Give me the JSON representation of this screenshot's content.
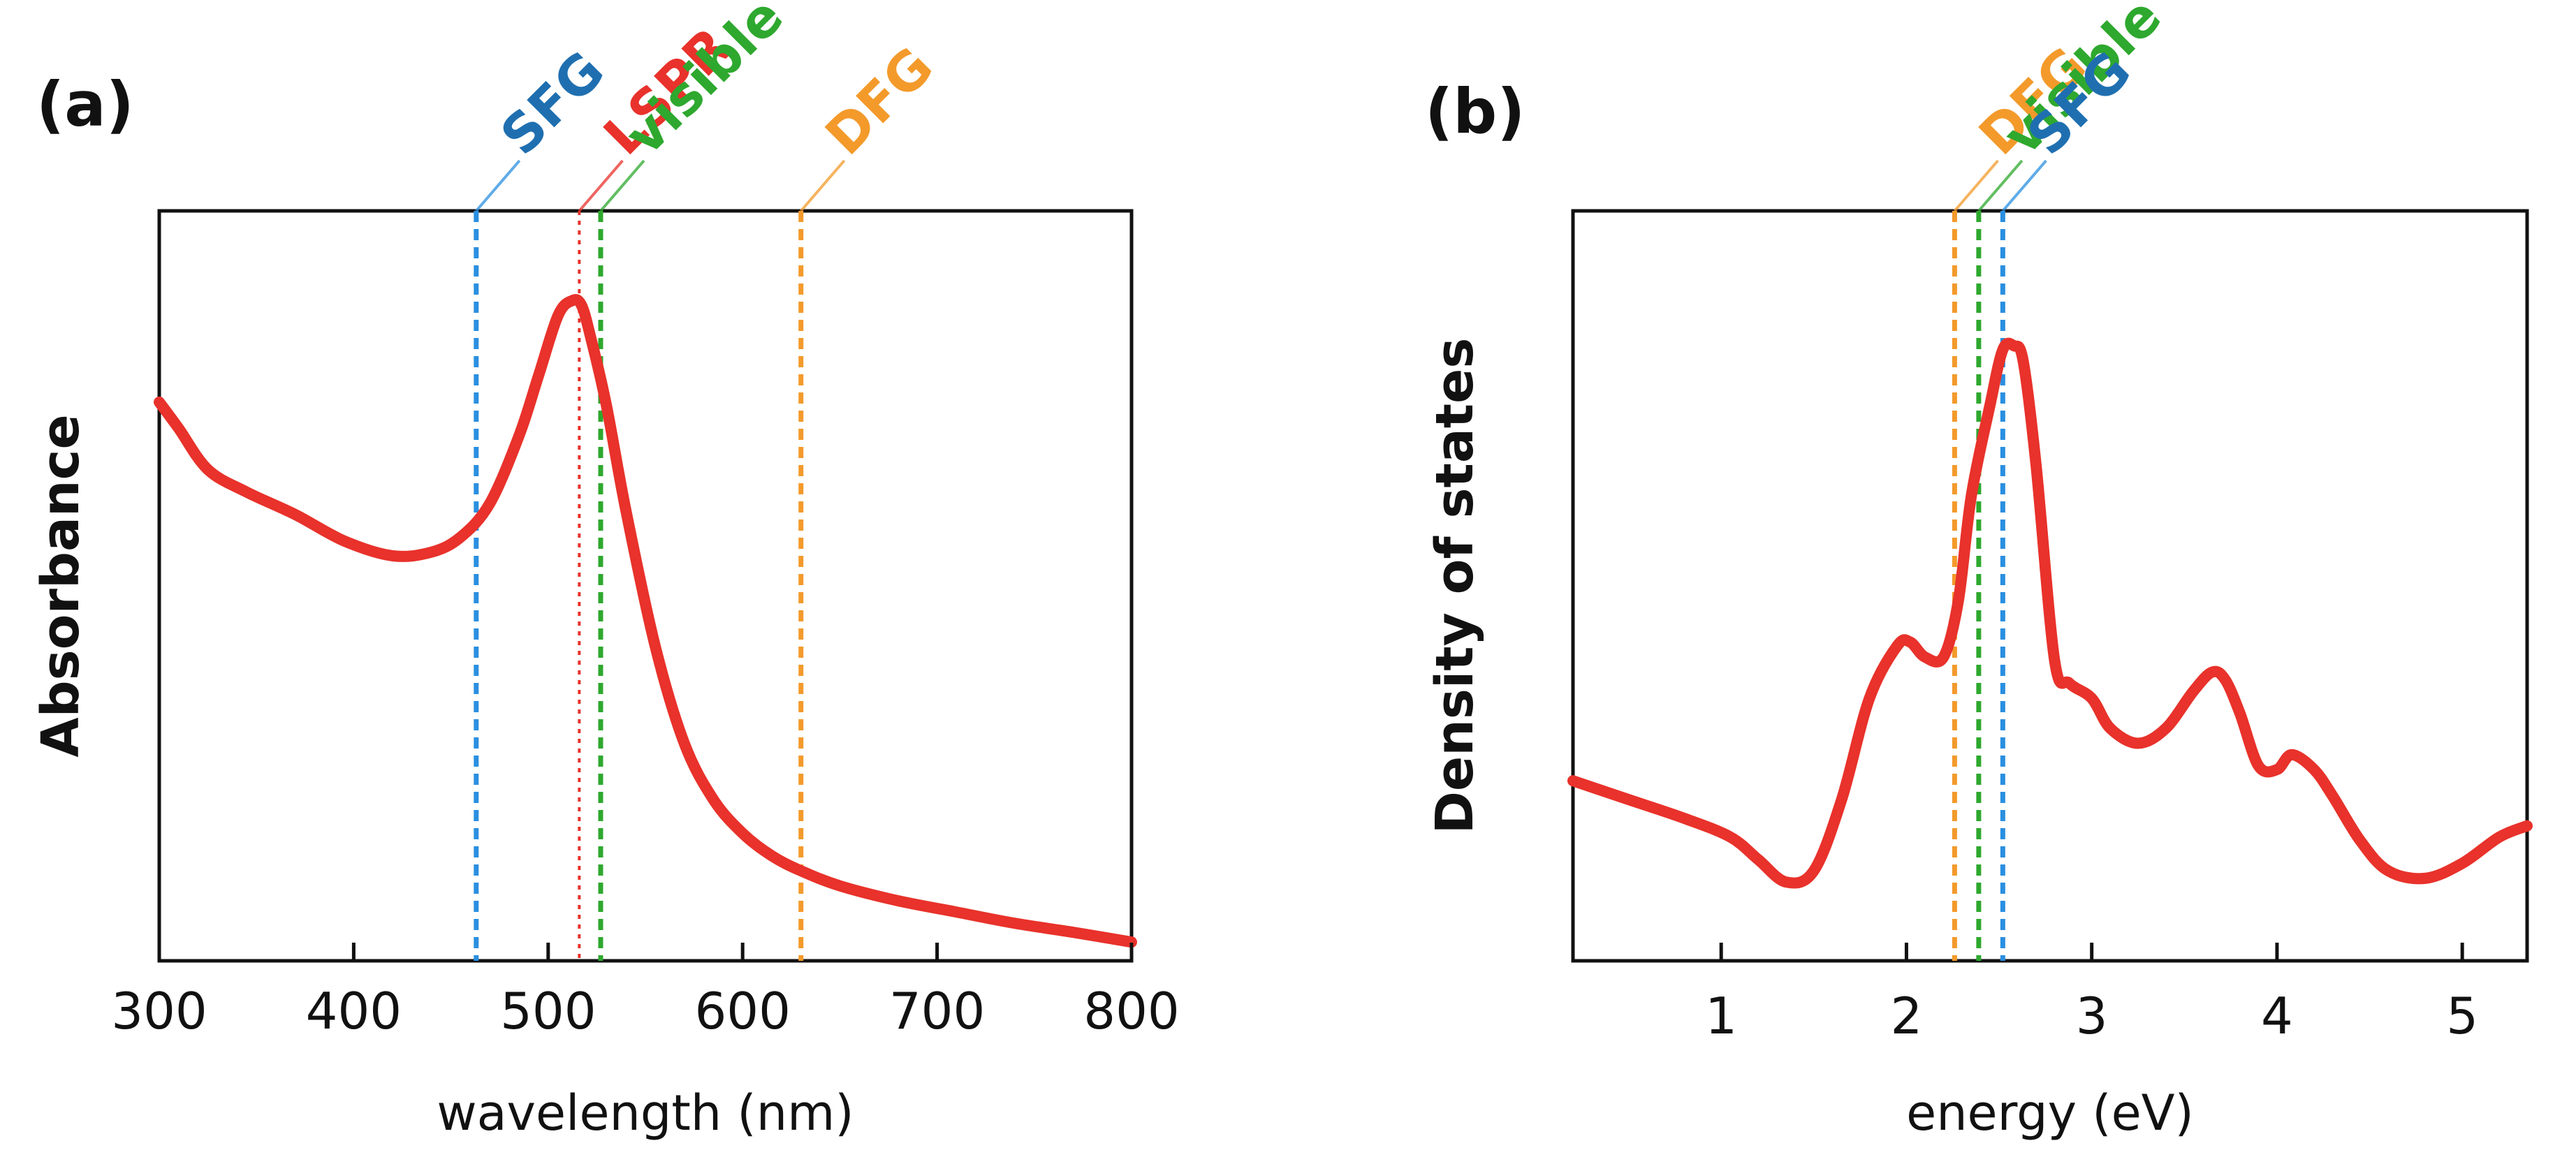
{
  "chart_data": [
    {
      "type": "line",
      "panel_label": "(a)",
      "xlabel": "wavelength (nm)",
      "ylabel": "Absorbance",
      "xlim": [
        300,
        800
      ],
      "ylim": [
        0,
        1
      ],
      "xticks": [
        300,
        400,
        500,
        600,
        700,
        800
      ],
      "y_tick_labels": false,
      "grid": false,
      "series": [
        {
          "color": "#e8322b",
          "x": [
            300,
            310,
            325,
            345,
            370,
            395,
            420,
            440,
            455,
            470,
            485,
            495,
            505,
            512,
            517,
            522,
            530,
            540,
            555,
            570,
            585,
            600,
            615,
            630,
            650,
            680,
            710,
            740,
            770,
            800
          ],
          "y": [
            0.745,
            0.71,
            0.655,
            0.625,
            0.595,
            0.56,
            0.54,
            0.545,
            0.565,
            0.61,
            0.7,
            0.78,
            0.86,
            0.88,
            0.875,
            0.83,
            0.74,
            0.6,
            0.42,
            0.29,
            0.215,
            0.17,
            0.14,
            0.12,
            0.1,
            0.08,
            0.065,
            0.05,
            0.038,
            0.025
          ]
        }
      ],
      "markers": [
        {
          "label": "SFG",
          "x": 463,
          "color": "#2a8fe0",
          "label_color": "#1f6fb0",
          "style": "dashed"
        },
        {
          "label": "LSPR",
          "x": 516,
          "color": "#e8322b",
          "label_color": "#e8322b",
          "style": "dotted"
        },
        {
          "label": "visible",
          "x": 527,
          "color": "#2ea82e",
          "label_color": "#2ea82e",
          "style": "dashed"
        },
        {
          "label": "DFG",
          "x": 630,
          "color": "#f39a2b",
          "label_color": "#f39a2b",
          "style": "dashed"
        }
      ]
    },
    {
      "type": "line",
      "panel_label": "(b)",
      "xlabel": "energy (eV)",
      "ylabel": "Density of states",
      "xlim": [
        0.2,
        5.35
      ],
      "ylim": [
        0,
        1
      ],
      "xticks": [
        1,
        2,
        3,
        4,
        5
      ],
      "y_tick_labels": false,
      "grid": false,
      "series": [
        {
          "color": "#e8322b",
          "x": [
            0.2,
            0.5,
            0.8,
            1.05,
            1.2,
            1.35,
            1.5,
            1.65,
            1.8,
            1.95,
            2.02,
            2.1,
            2.2,
            2.28,
            2.35,
            2.45,
            2.52,
            2.58,
            2.63,
            2.7,
            2.8,
            2.88,
            3.0,
            3.1,
            3.25,
            3.4,
            3.55,
            3.65,
            3.72,
            3.8,
            3.9,
            4.0,
            4.08,
            4.2,
            4.3,
            4.45,
            4.6,
            4.8,
            5.0,
            5.2,
            5.35
          ],
          "y": [
            0.24,
            0.215,
            0.19,
            0.165,
            0.135,
            0.105,
            0.12,
            0.215,
            0.35,
            0.42,
            0.425,
            0.405,
            0.405,
            0.48,
            0.62,
            0.74,
            0.815,
            0.82,
            0.8,
            0.66,
            0.4,
            0.37,
            0.35,
            0.31,
            0.29,
            0.31,
            0.36,
            0.385,
            0.375,
            0.33,
            0.26,
            0.255,
            0.275,
            0.255,
            0.22,
            0.16,
            0.12,
            0.11,
            0.13,
            0.165,
            0.18
          ]
        }
      ],
      "markers": [
        {
          "label": "DFG",
          "x": 2.26,
          "color": "#f39a2b",
          "label_color": "#f39a2b",
          "style": "dashed"
        },
        {
          "label": "visible",
          "x": 2.39,
          "color": "#2ea82e",
          "label_color": "#2ea82e",
          "style": "dashed"
        },
        {
          "label": "SFG",
          "x": 2.52,
          "color": "#2a8fe0",
          "label_color": "#1f6fb0",
          "style": "dashed"
        }
      ]
    }
  ]
}
